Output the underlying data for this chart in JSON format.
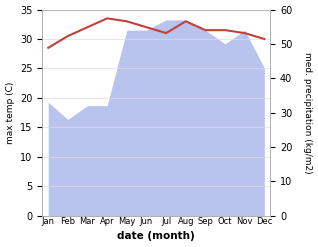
{
  "months": [
    "Jan",
    "Feb",
    "Mar",
    "Apr",
    "May",
    "Jun",
    "Jul",
    "Aug",
    "Sep",
    "Oct",
    "Nov",
    "Dec"
  ],
  "x": [
    0,
    1,
    2,
    3,
    4,
    5,
    6,
    7,
    8,
    9,
    10,
    11
  ],
  "temperature": [
    28.5,
    30.5,
    32.0,
    33.5,
    33.0,
    32.0,
    31.0,
    33.0,
    31.5,
    31.5,
    31.0,
    30.0
  ],
  "precipitation": [
    33.0,
    28.0,
    32.0,
    32.0,
    54.0,
    54.0,
    57.0,
    57.0,
    54.0,
    50.0,
    54.0,
    43.0
  ],
  "temp_color": "#c0413a",
  "precip_fill_color": "#b8c4ee",
  "temp_ylim": [
    0,
    35
  ],
  "precip_ylim": [
    0,
    60
  ],
  "temp_yticks": [
    0,
    5,
    10,
    15,
    20,
    25,
    30,
    35
  ],
  "precip_yticks": [
    0,
    10,
    20,
    30,
    40,
    50,
    60
  ],
  "xlabel": "date (month)",
  "ylabel_left": "max temp (C)",
  "ylabel_right": "med. precipitation (kg/m2)",
  "figsize": [
    3.18,
    2.47
  ],
  "dpi": 100
}
